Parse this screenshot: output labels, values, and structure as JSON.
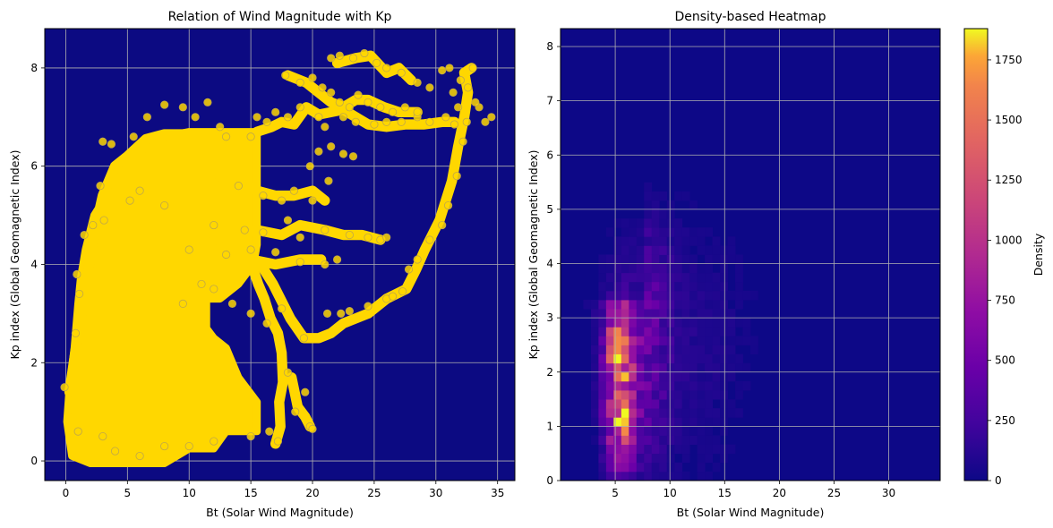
{
  "chart_data": [
    {
      "type": "scatter",
      "title": "Relation of Wind Magnitude with Kp",
      "xlabel": "Bt (Solar Wind Magnitude)",
      "ylabel": "Kp index (Global Geomagnetic Index)",
      "xlim": [
        -1.7,
        36.4
      ],
      "ylim": [
        -0.4,
        8.8
      ],
      "xticks": [
        0,
        5,
        10,
        15,
        20,
        25,
        30,
        35
      ],
      "yticks": [
        0,
        2,
        4,
        6,
        8
      ],
      "grid": true,
      "background_color": "#0c0a82",
      "point_color": "#ffd700",
      "point_edge_color": "#bfa64a",
      "marker_radius": 4.2,
      "points": [
        [
          4,
          0.2
        ],
        [
          6,
          0.1
        ],
        [
          8,
          0.3
        ],
        [
          3,
          0.5
        ],
        [
          1,
          0.6
        ],
        [
          12,
          0.4
        ],
        [
          10,
          0.3
        ],
        [
          15,
          0.5
        ],
        [
          -0.1,
          1.5
        ],
        [
          0.8,
          2.6
        ],
        [
          1.1,
          3.4
        ],
        [
          0.9,
          3.8
        ],
        [
          1.5,
          4.6
        ],
        [
          2.8,
          5.6
        ],
        [
          3,
          6.5
        ],
        [
          3.7,
          6.45
        ],
        [
          5.5,
          6.6
        ],
        [
          6.6,
          7.0
        ],
        [
          8,
          7.25
        ],
        [
          9.5,
          7.2
        ],
        [
          10.5,
          7.0
        ],
        [
          11.5,
          7.3
        ],
        [
          12.5,
          6.8
        ],
        [
          13,
          6.6
        ],
        [
          15,
          6.6
        ],
        [
          2.2,
          4.8
        ],
        [
          3.1,
          4.9
        ],
        [
          5.2,
          5.3
        ],
        [
          6,
          5.5
        ],
        [
          8,
          5.2
        ],
        [
          14,
          5.6
        ],
        [
          16,
          5.4
        ],
        [
          17.5,
          5.3
        ],
        [
          18.5,
          5.5
        ],
        [
          20,
          5.3
        ],
        [
          21.3,
          5.7
        ],
        [
          12,
          4.8
        ],
        [
          14.5,
          4.7
        ],
        [
          16,
          4.65
        ],
        [
          18,
          4.9
        ],
        [
          19,
          4.55
        ],
        [
          21,
          4.7
        ],
        [
          23,
          4.6
        ],
        [
          24.5,
          4.55
        ],
        [
          25.5,
          4.5
        ],
        [
          26,
          4.55
        ],
        [
          10,
          4.3
        ],
        [
          13,
          4.2
        ],
        [
          15,
          4.3
        ],
        [
          17,
          4.25
        ],
        [
          19,
          4.05
        ],
        [
          21,
          4.0
        ],
        [
          22,
          4.1
        ],
        [
          9.5,
          3.2
        ],
        [
          11,
          3.6
        ],
        [
          12,
          3.5
        ],
        [
          13.5,
          3.2
        ],
        [
          15,
          3.0
        ],
        [
          16.3,
          2.8
        ],
        [
          17.5,
          3.1
        ],
        [
          16.5,
          0.6
        ],
        [
          17.2,
          0.4
        ],
        [
          18.6,
          1.0
        ],
        [
          19.4,
          1.4
        ],
        [
          19.8,
          0.7
        ],
        [
          20,
          0.65
        ],
        [
          18,
          1.8
        ],
        [
          19.3,
          2.5
        ],
        [
          21.2,
          3.0
        ],
        [
          22.3,
          3.0
        ],
        [
          23,
          3.05
        ],
        [
          24.5,
          3.15
        ],
        [
          26,
          3.3
        ],
        [
          26.5,
          3.35
        ],
        [
          27.3,
          3.45
        ],
        [
          27.8,
          3.9
        ],
        [
          28.5,
          4.1
        ],
        [
          29.5,
          4.5
        ],
        [
          30.5,
          4.8
        ],
        [
          31,
          5.2
        ],
        [
          31.7,
          5.8
        ],
        [
          32.2,
          6.5
        ],
        [
          32.5,
          6.9
        ],
        [
          31.8,
          7.2
        ],
        [
          31.4,
          7.5
        ],
        [
          32,
          7.75
        ],
        [
          33,
          8.0
        ],
        [
          32.6,
          7.6
        ],
        [
          33.5,
          7.2
        ],
        [
          34.5,
          7.0
        ],
        [
          34,
          6.9
        ],
        [
          33.2,
          7.3
        ],
        [
          15.5,
          7.0
        ],
        [
          16.3,
          6.9
        ],
        [
          17,
          7.1
        ],
        [
          18,
          7.0
        ],
        [
          19,
          7.2
        ],
        [
          20.5,
          7.0
        ],
        [
          21,
          6.8
        ],
        [
          22.5,
          7.0
        ],
        [
          23.5,
          6.9
        ],
        [
          25,
          6.85
        ],
        [
          26,
          6.9
        ],
        [
          27.2,
          6.9
        ],
        [
          28.5,
          7.0
        ],
        [
          29.5,
          6.9
        ],
        [
          30.8,
          7.0
        ],
        [
          31.5,
          6.85
        ],
        [
          17.8,
          7.85
        ],
        [
          19,
          7.7
        ],
        [
          20,
          7.8
        ],
        [
          20.8,
          7.6
        ],
        [
          21.5,
          7.5
        ],
        [
          22.2,
          7.3
        ],
        [
          23,
          7.2
        ],
        [
          23.7,
          7.45
        ],
        [
          24.5,
          7.3
        ],
        [
          25.5,
          7.2
        ],
        [
          26.5,
          7.1
        ],
        [
          27.5,
          7.2
        ],
        [
          28.5,
          7.1
        ],
        [
          21.5,
          8.2
        ],
        [
          22.2,
          8.25
        ],
        [
          23.3,
          8.2
        ],
        [
          24.2,
          8.3
        ],
        [
          25.2,
          8.1
        ],
        [
          26,
          8.0
        ],
        [
          27.2,
          7.9
        ],
        [
          28.5,
          7.7
        ],
        [
          29.5,
          7.6
        ],
        [
          30.5,
          7.95
        ],
        [
          31.1,
          8.0
        ],
        [
          19.8,
          6.0
        ],
        [
          20.5,
          6.3
        ],
        [
          21.5,
          6.4
        ],
        [
          22.5,
          6.25
        ],
        [
          23.3,
          6.2
        ]
      ],
      "polygons": [
        [
          [
            0.1,
            0.8
          ],
          [
            0.5,
            0.1
          ],
          [
            2,
            -0.05
          ],
          [
            4,
            -0.05
          ],
          [
            6,
            -0.05
          ],
          [
            8,
            -0.05
          ],
          [
            10,
            0.25
          ],
          [
            12,
            0.25
          ],
          [
            13,
            0.6
          ],
          [
            15.5,
            0.6
          ],
          [
            15.5,
            1.2
          ],
          [
            14,
            1.7
          ],
          [
            13,
            2.3
          ],
          [
            12,
            2.5
          ],
          [
            11.4,
            2.7
          ],
          [
            11.4,
            3.3
          ],
          [
            12.5,
            3.3
          ],
          [
            14,
            3.6
          ],
          [
            15.2,
            4.0
          ],
          [
            15.5,
            4.4
          ],
          [
            15.5,
            6.7
          ],
          [
            12,
            6.7
          ],
          [
            10,
            6.7
          ],
          [
            8,
            6.6
          ],
          [
            6,
            6.3
          ],
          [
            4.5,
            5.9
          ],
          [
            3.3,
            5.4
          ],
          [
            2.3,
            5.0
          ],
          [
            1.6,
            4.3
          ],
          [
            1.2,
            3.7
          ],
          [
            1,
            3.2
          ],
          [
            0.7,
            2.3
          ],
          [
            0.3,
            1.5
          ]
        ]
      ],
      "paths": [
        [
          [
            17,
            0.35
          ],
          [
            17.4,
            0.7
          ],
          [
            17.3,
            1.2
          ],
          [
            17.6,
            1.6
          ],
          [
            17.5,
            2.2
          ],
          [
            17.2,
            2.6
          ],
          [
            16.6,
            2.9
          ],
          [
            16.1,
            3.3
          ],
          [
            15.6,
            3.6
          ],
          [
            15.2,
            3.9
          ]
        ],
        [
          [
            15.8,
            4.0
          ],
          [
            16.8,
            3.6
          ],
          [
            18.2,
            2.9
          ],
          [
            19.3,
            2.5
          ],
          [
            20.5,
            2.5
          ],
          [
            21.5,
            2.6
          ],
          [
            22.5,
            2.8
          ],
          [
            24.5,
            3.0
          ],
          [
            26,
            3.3
          ]
        ],
        [
          [
            26,
            3.3
          ],
          [
            27.6,
            3.5
          ],
          [
            28.4,
            3.9
          ],
          [
            29.1,
            4.3
          ],
          [
            29.7,
            4.6
          ],
          [
            30.3,
            4.9
          ],
          [
            30.8,
            5.3
          ],
          [
            31.3,
            5.7
          ],
          [
            31.8,
            6.4
          ],
          [
            32.3,
            7.0
          ],
          [
            32.6,
            7.5
          ],
          [
            32.3,
            7.9
          ],
          [
            32.9,
            8.0
          ]
        ],
        [
          [
            12,
            4.5
          ],
          [
            14,
            4.6
          ],
          [
            15.5,
            4.7
          ],
          [
            17.5,
            4.6
          ],
          [
            19,
            4.8
          ],
          [
            21,
            4.7
          ],
          [
            22.5,
            4.6
          ],
          [
            24,
            4.6
          ],
          [
            25.5,
            4.5
          ]
        ],
        [
          [
            12.5,
            5.8
          ],
          [
            14,
            5.7
          ],
          [
            15.5,
            5.5
          ],
          [
            17,
            5.4
          ],
          [
            18.5,
            5.4
          ],
          [
            20,
            5.5
          ],
          [
            21,
            5.3
          ]
        ],
        [
          [
            11,
            4.1
          ],
          [
            13,
            4.2
          ],
          [
            15,
            4.1
          ],
          [
            17,
            4.0
          ],
          [
            19,
            4.1
          ],
          [
            20.7,
            4.1
          ]
        ],
        [
          [
            15.5,
            6.7
          ],
          [
            16.7,
            6.8
          ],
          [
            17.5,
            6.9
          ],
          [
            18.5,
            6.85
          ],
          [
            19.5,
            7.2
          ],
          [
            20.5,
            7.05
          ],
          [
            21.5,
            7.1
          ],
          [
            22.5,
            7.15
          ],
          [
            23.5,
            7.0
          ],
          [
            24.5,
            6.85
          ],
          [
            26,
            6.8
          ],
          [
            27.5,
            6.85
          ],
          [
            29,
            6.85
          ],
          [
            30.5,
            6.9
          ],
          [
            31.5,
            6.9
          ]
        ],
        [
          [
            18,
            7.85
          ],
          [
            19.5,
            7.7
          ],
          [
            20.5,
            7.5
          ],
          [
            21.5,
            7.3
          ],
          [
            22.5,
            7.2
          ],
          [
            23.5,
            7.35
          ],
          [
            24.5,
            7.35
          ],
          [
            25.8,
            7.2
          ],
          [
            27,
            7.1
          ],
          [
            28.5,
            7.1
          ]
        ],
        [
          [
            22,
            8.1
          ],
          [
            23.5,
            8.2
          ],
          [
            24.7,
            8.25
          ],
          [
            26,
            7.9
          ],
          [
            27,
            8.0
          ],
          [
            28,
            7.75
          ]
        ],
        [
          [
            0.3,
            1.4
          ],
          [
            1,
            2.6
          ],
          [
            1.6,
            3.5
          ],
          [
            2.2,
            4.5
          ],
          [
            3,
            5.4
          ],
          [
            4,
            6.0
          ],
          [
            5,
            6.2
          ],
          [
            6.5,
            6.55
          ],
          [
            8,
            6.65
          ],
          [
            10,
            6.65
          ],
          [
            12.5,
            6.6
          ],
          [
            15,
            6.6
          ]
        ],
        [
          [
            18.3,
            1.7
          ],
          [
            18.8,
            1.1
          ],
          [
            19.4,
            0.9
          ],
          [
            19.8,
            0.7
          ]
        ]
      ]
    },
    {
      "type": "heatmap",
      "title": "Density-based Heatmap",
      "xlabel": "Bt (Solar Wind Magnitude)",
      "ylabel": "Kp index (Global Geomagnetic Index)",
      "xlim": [
        0,
        34.7
      ],
      "ylim": [
        0,
        8.33
      ],
      "xticks": [
        5,
        10,
        15,
        20,
        25,
        30
      ],
      "yticks": [
        0,
        1,
        2,
        3,
        4,
        5,
        6,
        7,
        8
      ],
      "grid": true,
      "colormap": "plasma",
      "colorbar_label": "Density",
      "colorbar_range": [
        0,
        1880
      ],
      "colorbar_ticks": [
        0,
        250,
        500,
        750,
        1000,
        1250,
        1500,
        1750
      ],
      "kde_peaks": [
        {
          "x": 5.5,
          "y": 1.6,
          "amp": 1180,
          "sx": 1.0,
          "sy": 0.95
        },
        {
          "x": 5.2,
          "y": 2.6,
          "amp": 700,
          "sx": 0.7,
          "sy": 0.5
        },
        {
          "x": 5.5,
          "y": 1.0,
          "amp": 300,
          "sx": 0.7,
          "sy": 0.35
        },
        {
          "x": 7.8,
          "y": 2.0,
          "amp": 300,
          "sx": 1.6,
          "sy": 1.2
        },
        {
          "x": 6.5,
          "y": 3.7,
          "amp": 250,
          "sx": 2.2,
          "sy": 0.8
        },
        {
          "x": 12.0,
          "y": 2.5,
          "amp": 90,
          "sx": 4.0,
          "sy": 1.8
        }
      ]
    }
  ]
}
